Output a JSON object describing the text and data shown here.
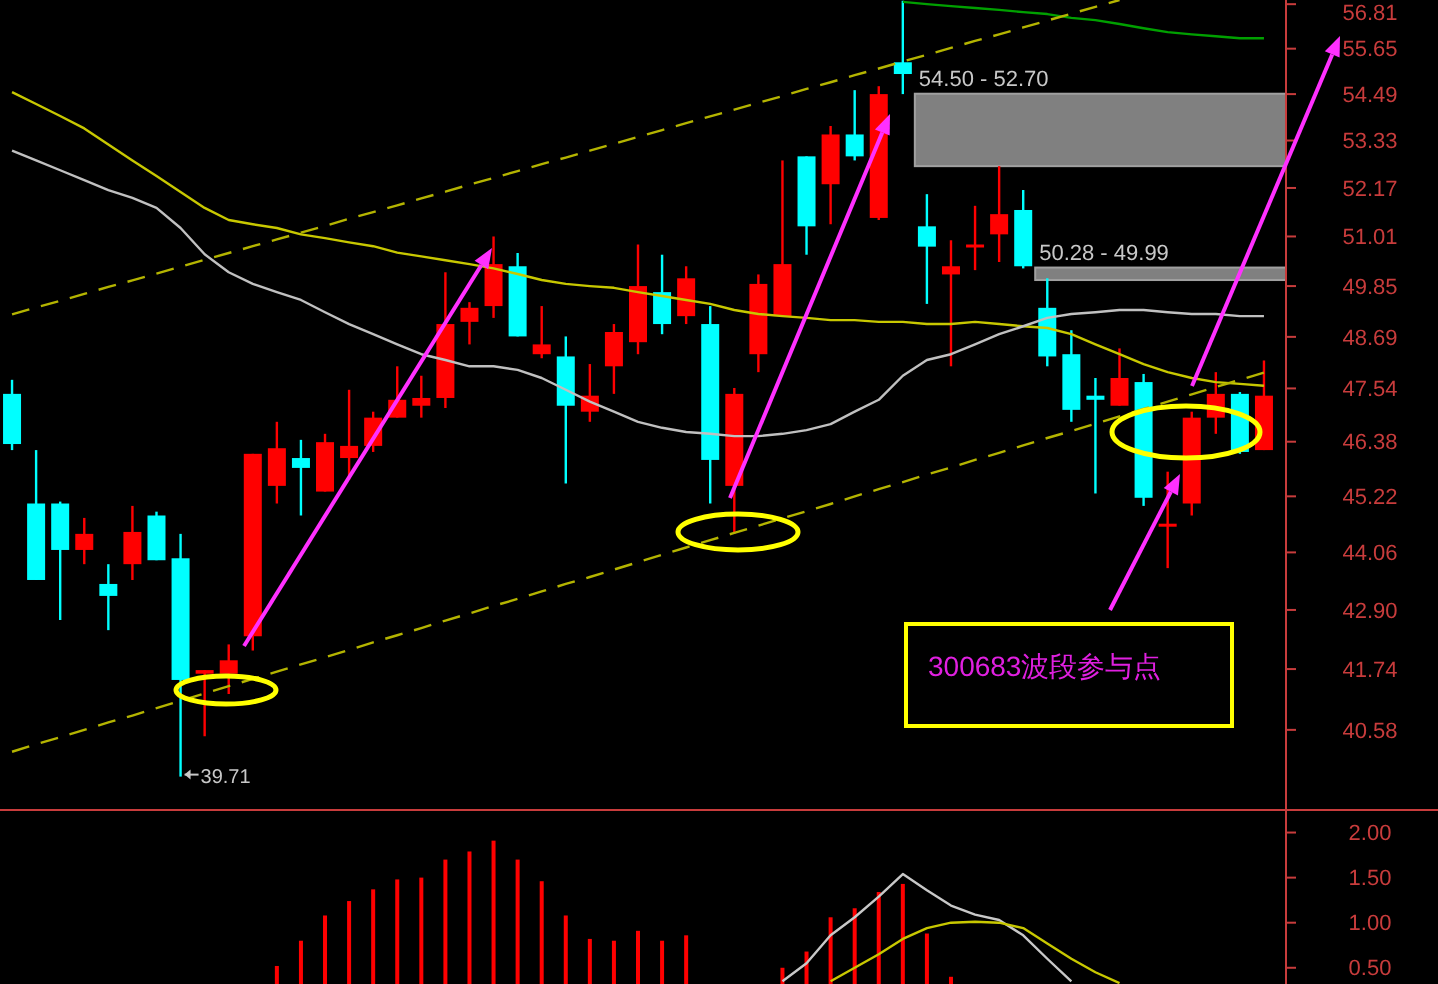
{
  "chart_data": [
    {
      "type": "candlestick",
      "log": true,
      "tick_labels": "y",
      "categories": [
        null,
        null,
        null,
        null,
        null,
        null,
        null,
        null,
        null,
        null,
        null,
        null,
        null,
        null,
        null,
        null,
        null,
        null,
        null,
        null,
        null,
        null,
        null,
        null,
        null,
        null,
        null,
        null,
        null,
        null,
        null,
        null,
        null,
        null,
        null,
        null,
        null,
        null,
        null,
        null,
        null,
        null,
        null,
        null,
        null,
        null,
        null,
        null,
        null,
        null,
        null,
        null,
        null
      ],
      "ohlc": [
        [
          47.42,
          47.73,
          46.2,
          46.33
        ],
        [
          45.07,
          46.2,
          43.5,
          43.5
        ],
        [
          45.07,
          45.11,
          42.7,
          44.11
        ],
        [
          44.11,
          44.77,
          43.82,
          44.44
        ],
        [
          43.42,
          43.82,
          42.5,
          43.18
        ],
        [
          43.82,
          45.02,
          43.5,
          44.48
        ],
        [
          44.82,
          44.9,
          43.9,
          43.9
        ],
        [
          43.94,
          44.44,
          39.71,
          41.53
        ],
        [
          41.65,
          41.72,
          40.46,
          41.72
        ],
        [
          41.65,
          42.22,
          41.26,
          41.91
        ],
        [
          42.38,
          46.12,
          42.1,
          46.12
        ],
        [
          45.44,
          46.81,
          45.07,
          46.24
        ],
        [
          46.03,
          46.42,
          44.82,
          45.82
        ],
        [
          45.32,
          46.55,
          45.32,
          46.37
        ],
        [
          46.03,
          47.51,
          45.57,
          46.29
        ],
        [
          46.29,
          47.03,
          46.16,
          46.9
        ],
        [
          46.9,
          48.03,
          46.9,
          47.29
        ],
        [
          47.16,
          47.82,
          46.9,
          47.33
        ],
        [
          47.33,
          50.17,
          47.11,
          48.98
        ],
        [
          49.03,
          49.48,
          48.52,
          49.35
        ],
        [
          49.39,
          51.01,
          49.12,
          50.36
        ],
        [
          50.31,
          50.62,
          48.7,
          48.7
        ],
        [
          48.3,
          49.39,
          48.21,
          48.52
        ],
        [
          48.25,
          48.7,
          45.49,
          47.16
        ],
        [
          47.03,
          48.08,
          46.81,
          47.38
        ],
        [
          48.03,
          48.98,
          47.42,
          48.8
        ],
        [
          48.57,
          50.82,
          48.3,
          49.85
        ],
        [
          49.71,
          50.58,
          48.75,
          48.98
        ],
        [
          49.16,
          50.31,
          48.98,
          50.03
        ],
        [
          48.98,
          49.39,
          45.07,
          45.99
        ],
        [
          45.44,
          47.55,
          44.44,
          47.42
        ],
        [
          48.3,
          50.12,
          47.9,
          49.9
        ],
        [
          49.16,
          52.84,
          49.16,
          50.36
        ],
        [
          52.94,
          52.94,
          50.58,
          51.25
        ],
        [
          52.26,
          53.69,
          51.3,
          53.48
        ],
        [
          53.48,
          54.59,
          52.84,
          52.94
        ],
        [
          51.45,
          54.69,
          51.4,
          54.49
        ],
        [
          55.3,
          56.9,
          54.49,
          55.0
        ],
        [
          51.25,
          52.02,
          49.44,
          50.77
        ],
        [
          50.12,
          50.92,
          48.03,
          50.31
        ],
        [
          50.82,
          51.74,
          50.22,
          50.82
        ],
        [
          51.06,
          52.7,
          50.41,
          51.54
        ],
        [
          51.64,
          52.12,
          50.26,
          50.31
        ],
        [
          49.35,
          50.03,
          48.03,
          48.25
        ],
        [
          48.3,
          48.84,
          46.81,
          47.07
        ],
        [
          47.38,
          47.77,
          45.28,
          47.29
        ],
        [
          47.16,
          48.43,
          47.16,
          47.77
        ],
        [
          47.68,
          47.86,
          45.02,
          45.19
        ],
        [
          44.61,
          45.74,
          43.74,
          44.65
        ],
        [
          45.07,
          47.03,
          44.82,
          46.9
        ],
        [
          46.9,
          47.9,
          46.55,
          47.42
        ],
        [
          47.42,
          47.46,
          46.12,
          46.16
        ],
        [
          46.2,
          48.16,
          46.2,
          47.38
        ]
      ],
      "colors": [
        "#00ffff",
        "#00ffff",
        "#00ffff",
        "#ff0000",
        "#00ffff",
        "#ff0000",
        "#00ffff",
        "#00ffff",
        "#ff0000",
        "#ff0000",
        "#ff0000",
        "#ff0000",
        "#00ffff",
        "#ff0000",
        "#ff0000",
        "#ff0000",
        "#ff0000",
        "#ff0000",
        "#ff0000",
        "#ff0000",
        "#ff0000",
        "#00ffff",
        "#ff0000",
        "#00ffff",
        "#ff0000",
        "#ff0000",
        "#ff0000",
        "#00ffff",
        "#ff0000",
        "#00ffff",
        "#ff0000",
        "#ff0000",
        "#ff0000",
        "#00ffff",
        "#ff0000",
        "#00ffff",
        "#ff0000",
        "#00ffff",
        "#00ffff",
        "#ff0000",
        "#ff0000",
        "#ff0000",
        "#00ffff",
        "#00ffff",
        "#00ffff",
        "#00ffff",
        "#ff0000",
        "#00ffff",
        "#ff0000",
        "#ff0000",
        "#ff0000",
        "#00ffff",
        "#ff0000"
      ],
      "series": [
        {
          "type": "line",
          "color": "#c8c800",
          "line_style": "solid",
          "values": [
            54.54,
            54.24,
            53.94,
            53.63,
            53.23,
            52.84,
            52.46,
            52.07,
            51.69,
            51.4,
            51.3,
            51.21,
            51.06,
            50.97,
            50.87,
            50.78,
            50.63,
            50.54,
            50.45,
            50.36,
            50.26,
            50.13,
            49.99,
            49.9,
            49.85,
            49.81,
            49.71,
            49.62,
            49.53,
            49.44,
            49.3,
            49.21,
            49.16,
            49.12,
            49.07,
            49.07,
            49.03,
            49.03,
            48.98,
            48.98,
            49.03,
            48.98,
            48.93,
            48.89,
            48.75,
            48.52,
            48.3,
            48.08,
            47.9,
            47.77,
            47.68,
            47.64,
            47.6
          ]
        },
        {
          "type": "line",
          "color": "#c0c0c0",
          "line_style": "solid",
          "values": [
            53.08,
            52.84,
            52.6,
            52.36,
            52.12,
            51.93,
            51.69,
            51.21,
            50.59,
            50.17,
            49.9,
            49.71,
            49.53,
            49.25,
            48.98,
            48.75,
            48.52,
            48.3,
            48.17,
            48.03,
            48.03,
            47.95,
            47.77,
            47.51,
            47.25,
            47.03,
            46.81,
            46.68,
            46.59,
            46.55,
            46.5,
            46.5,
            46.55,
            46.63,
            46.76,
            47.03,
            47.29,
            47.82,
            48.17,
            48.3,
            48.52,
            48.75,
            48.93,
            49.12,
            49.21,
            49.25,
            49.3,
            49.3,
            49.25,
            49.21,
            49.21,
            49.16,
            49.16
          ]
        },
        {
          "type": "line",
          "color": "#00a000",
          "line_style": "solid",
          "values": [
            null,
            null,
            null,
            null,
            null,
            null,
            null,
            null,
            null,
            null,
            null,
            null,
            null,
            null,
            null,
            null,
            null,
            null,
            null,
            null,
            null,
            null,
            null,
            null,
            null,
            null,
            null,
            null,
            null,
            null,
            null,
            null,
            null,
            null,
            null,
            null,
            null,
            56.87,
            56.81,
            56.76,
            56.71,
            56.66,
            56.6,
            56.55,
            56.45,
            56.39,
            56.29,
            56.18,
            56.08,
            56.02,
            55.97,
            55.92,
            55.92
          ]
        },
        {
          "type": "line",
          "color": "#b4b400",
          "line_style": "dashed",
          "values": [
            49.2,
            49.36,
            49.51,
            49.67,
            49.83,
            49.98,
            50.14,
            50.3,
            50.46,
            50.62,
            50.78,
            50.94,
            51.1,
            51.26,
            51.43,
            51.59,
            51.75,
            51.92,
            52.08,
            52.25,
            52.41,
            52.58,
            52.75,
            52.91,
            53.08,
            53.25,
            53.42,
            53.59,
            53.76,
            53.93,
            54.1,
            54.27,
            54.44,
            54.62,
            54.79,
            54.97,
            55.14,
            55.32,
            55.49,
            55.67,
            55.85,
            56.02,
            56.2,
            56.38,
            56.56,
            56.74,
            56.92,
            null,
            null,
            null,
            null,
            null,
            null
          ]
        },
        {
          "type": "line",
          "color": "#b4b400",
          "line_style": "dashed",
          "values": [
            40.17,
            40.31,
            40.44,
            40.58,
            40.72,
            40.85,
            40.99,
            41.13,
            41.27,
            41.41,
            41.55,
            41.69,
            41.83,
            41.97,
            42.11,
            42.26,
            42.4,
            42.54,
            42.69,
            42.83,
            42.98,
            43.12,
            43.27,
            43.42,
            43.56,
            43.71,
            43.86,
            44.01,
            44.16,
            44.31,
            44.46,
            44.61,
            44.76,
            44.91,
            45.06,
            45.22,
            45.37,
            45.52,
            45.68,
            45.83,
            45.99,
            46.14,
            46.3,
            46.46,
            46.61,
            46.77,
            46.93,
            47.09,
            47.25,
            47.41,
            47.57,
            47.73,
            47.89
          ]
        }
      ],
      "ylim": [
        39.1,
        56.92
      ],
      "yticks": [
        {
          "value": 40.58,
          "label": "40.58"
        },
        {
          "value": 41.74,
          "label": "41.74"
        },
        {
          "value": 42.9,
          "label": "42.90"
        },
        {
          "value": 44.06,
          "label": "44.06"
        },
        {
          "value": 45.22,
          "label": "45.22"
        },
        {
          "value": 46.38,
          "label": "46.38"
        },
        {
          "value": 47.54,
          "label": "47.54"
        },
        {
          "value": 48.69,
          "label": "48.69"
        },
        {
          "value": 49.85,
          "label": "49.85"
        },
        {
          "value": 51.01,
          "label": "51.01"
        },
        {
          "value": 52.17,
          "label": "52.17"
        },
        {
          "value": 53.33,
          "label": "53.33"
        },
        {
          "value": 54.49,
          "label": "54.49"
        },
        {
          "value": 55.65,
          "label": "55.65"
        },
        {
          "value": 56.81,
          "label": "56.81"
        }
      ],
      "bands": [
        {
          "axis": "y",
          "from": 52.7,
          "to": 54.5,
          "label": "54.50 - 52.70",
          "color": "#808080"
        },
        {
          "axis": "y",
          "from": 49.99,
          "to": 50.28,
          "label": "50.28 - 49.99",
          "color": "#808080"
        }
      ],
      "annotations": [
        "39.71",
        "300683波段参与点"
      ]
    },
    {
      "type": "bar",
      "tick_labels": "y",
      "categories": [
        null,
        null,
        null,
        null,
        null,
        null,
        null,
        null,
        null,
        null,
        null,
        null,
        null,
        null,
        null,
        null,
        null,
        null,
        null,
        null,
        null,
        null,
        null,
        null,
        null,
        null,
        null,
        null,
        null,
        null,
        null,
        null,
        null,
        null,
        null,
        null,
        null,
        null,
        null,
        null,
        null,
        null,
        null,
        null,
        null,
        null,
        null,
        null,
        null,
        null,
        null,
        null,
        null
      ],
      "series": [
        {
          "type": "bar",
          "color": "#ff0000",
          "values": [
            null,
            null,
            null,
            null,
            null,
            null,
            null,
            null,
            null,
            null,
            null,
            0.52,
            0.8,
            1.08,
            1.24,
            1.37,
            1.48,
            1.5,
            1.7,
            1.79,
            1.91,
            1.7,
            1.46,
            1.08,
            0.82,
            0.8,
            0.91,
            0.8,
            0.86,
            null,
            null,
            null,
            0.5,
            0.68,
            1.06,
            1.16,
            1.34,
            1.43,
            0.88,
            0.4,
            null,
            null,
            null,
            null,
            null,
            null,
            null,
            null,
            null,
            null,
            null,
            null,
            null
          ]
        },
        {
          "type": "line",
          "color": "#c8c8c8",
          "values": [
            null,
            null,
            null,
            null,
            null,
            null,
            null,
            null,
            null,
            null,
            null,
            null,
            null,
            null,
            null,
            null,
            null,
            null,
            null,
            null,
            null,
            null,
            null,
            null,
            null,
            null,
            null,
            null,
            null,
            null,
            null,
            null,
            0.35,
            0.55,
            0.86,
            1.06,
            1.29,
            1.54,
            1.36,
            1.19,
            1.09,
            1.03,
            0.86,
            0.6,
            0.35,
            null,
            null,
            null,
            null,
            null,
            null,
            null,
            null
          ]
        },
        {
          "type": "line",
          "color": "#c8c800",
          "values": [
            null,
            null,
            null,
            null,
            null,
            null,
            null,
            null,
            null,
            null,
            null,
            null,
            null,
            null,
            null,
            null,
            null,
            null,
            null,
            null,
            null,
            null,
            null,
            null,
            null,
            null,
            null,
            null,
            null,
            null,
            null,
            null,
            null,
            null,
            0.35,
            0.5,
            0.65,
            0.82,
            0.94,
            1.0,
            1.01,
            1.0,
            0.94,
            0.77,
            0.6,
            0.45,
            0.33,
            null,
            null,
            null,
            null,
            null,
            null
          ]
        }
      ],
      "ylim": [
        0.32,
        2.25
      ],
      "yticks": [
        {
          "value": 0.5,
          "label": "0.50"
        },
        {
          "value": 1,
          "label": "1.00"
        },
        {
          "value": 1.5,
          "label": "1.50"
        },
        {
          "value": 2,
          "label": "2.00"
        }
      ]
    }
  ]
}
